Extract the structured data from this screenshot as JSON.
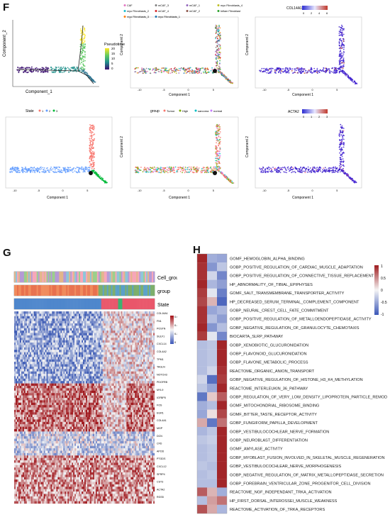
{
  "panel_letters": {
    "f": "F",
    "g": "G",
    "h": "H"
  },
  "panel_f": {
    "axis_component_1": "Component 1",
    "axis_component_2": "Component 2",
    "plot_a_xlabel": "Component_1",
    "plot_a_ylabel": "Component_2",
    "pseudotime_title": "Pseudotime",
    "pseudotime_ticks": [
      "20",
      "15",
      "10",
      "5",
      "0"
    ],
    "celltype_legend": [
      "CAF",
      "mCAF_3",
      "mCAF_1",
      "myo Fibroblasts_4",
      "myo Fibroblasts_2",
      "mCAF_4",
      "mCAF_2",
      "Inflam Fibroblast",
      "myo Fibroblasts_3",
      "myo Fibroblasts_1"
    ],
    "col14a1_title": "COL14A1",
    "col14a1_ticks": [
      "0",
      "2",
      "4",
      "6"
    ],
    "state_title": "State",
    "state_items": [
      "1",
      "2",
      "3"
    ],
    "group_title": "group",
    "group_items": [
      "Tumor",
      "High",
      "sarcoma",
      "normal"
    ],
    "acta2_title": "ACTA2",
    "acta2_ticks": [
      "0",
      "1",
      "2",
      "3"
    ],
    "x_ticks": [
      "-10",
      "-5",
      "0",
      "5"
    ],
    "node_label": "1"
  },
  "panel_g": {
    "annotation_rows": [
      "Cell_group",
      "group",
      "State"
    ],
    "colorbar_ticks": [
      "0.6",
      "0.4",
      "0.2",
      "0"
    ],
    "gene_labels": [
      "COL16A1",
      "FN1",
      "POSTN",
      "SULF1",
      "CXCL14",
      "COL4A2",
      "TPM1",
      "TAGLN",
      "NOTCH3",
      "PDGFRB",
      "MYL9",
      "IGFBP5",
      "FOS",
      "EGR1",
      "COL4A1",
      "MGP",
      "DCN",
      "CFD",
      "APOD",
      "PTGDS",
      "CXCL12",
      "SFRP4",
      "CST3",
      "ACTA2",
      "RGS5"
    ]
  },
  "panel_h": {
    "colorbar_ticks": [
      "1",
      "0.5",
      "0",
      "-0.5",
      "-1"
    ],
    "rows": [
      {
        "label": "GOMF_HEMOGLOBIN_ALPHA_BINDING",
        "values": [
          0.95,
          -0.45,
          -0.5
        ]
      },
      {
        "label": "GOBP_POSITIVE_REGULATION_OF_CARDIAC_MUSCLE_ADAPTATION",
        "values": [
          0.9,
          -0.6,
          -0.3
        ]
      },
      {
        "label": "GOBP_POSITIVE_REGULATION_OF_CONNECTIVE_TISSUE_REPLACEMENT",
        "values": [
          0.9,
          -0.2,
          -0.7
        ]
      },
      {
        "label": "HP_ABNORMALITY_OF_TIBIAL_EPIPHYSES",
        "values": [
          0.95,
          -0.4,
          -0.55
        ]
      },
      {
        "label": "GOMF_SALT_TRANSMEMBRANE_TRANSPORTER_ACTIVITY",
        "values": [
          0.85,
          -0.1,
          -0.75
        ]
      },
      {
        "label": "HP_DECREASED_SERUM_TERMINAL_COMPLEMENT_COMPONENT",
        "values": [
          0.8,
          0.3,
          -0.9
        ]
      },
      {
        "label": "GOBP_NEURAL_CREST_CELL_FATE_COMMITMENT",
        "values": [
          0.9,
          -0.5,
          -0.4
        ]
      },
      {
        "label": "GOBP_POSITIVE_REGULATION_OF_METALLOENDOPEPTIDASE_ACTIVITY",
        "values": [
          0.9,
          -0.35,
          -0.55
        ]
      },
      {
        "label": "GOBP_NEGATIVE_REGULATION_OF_GRANULOCYTE_CHEMOTAXIS",
        "values": [
          0.95,
          -0.6,
          -0.35
        ]
      },
      {
        "label": "BIOCARTA_SLRP_PATHWAY",
        "values": [
          0.85,
          -0.1,
          -0.7
        ]
      },
      {
        "label": "GOBP_XENOBIOTIC_GLUCURONIDATION",
        "values": [
          -0.35,
          -0.3,
          0.95
        ]
      },
      {
        "label": "GOBP_FLAVONOID_GLUCURONIDATION",
        "values": [
          -0.35,
          -0.3,
          0.95
        ]
      },
      {
        "label": "GOBP_FLAVONE_METABOLIC_PROCESS",
        "values": [
          -0.35,
          -0.3,
          0.95
        ]
      },
      {
        "label": "REACTOME_ORGANIC_ANION_TRANSPORT",
        "values": [
          -0.35,
          -0.2,
          0.9
        ]
      },
      {
        "label": "GOBP_NEGATIVE_REGULATION_OF_HISTONE_H3_K4_METHYLATION",
        "values": [
          -0.2,
          -0.85,
          0.85
        ]
      },
      {
        "label": "REACTOME_INTERLEUKIN_36_PATHWAY",
        "values": [
          -0.3,
          -0.5,
          0.95
        ]
      },
      {
        "label": "GOBP_REGULATION_OF_VERY_LOW_DENSITY_LIPOPROTEIN_PARTICLE_REMODELING",
        "values": [
          -0.8,
          0.2,
          0.7
        ]
      },
      {
        "label": "GOMF_MITOCHONDRIAL_RIBOSOME_BINDING",
        "values": [
          -0.45,
          -0.35,
          0.95
        ]
      },
      {
        "label": "GOMF_BITTER_TASTE_RECEPTOR_ACTIVITY",
        "values": [
          -0.5,
          0.1,
          0.8
        ]
      },
      {
        "label": "GOBP_FUNGIFORM_PAPILLA_DEVELOPMENT",
        "values": [
          0.35,
          -0.8,
          0.6
        ]
      },
      {
        "label": "GOBP_VESTIBULOCOCHLEAR_NERVE_FORMATION",
        "values": [
          -0.4,
          -0.3,
          0.95
        ]
      },
      {
        "label": "GOBP_NEUROBLAST_DIFFERENTIATION",
        "values": [
          -0.3,
          -0.25,
          0.95
        ]
      },
      {
        "label": "GOMF_AMYLASE_ACTIVITY",
        "values": [
          -0.35,
          -0.3,
          0.95
        ]
      },
      {
        "label": "GOBP_MYOBLAST_FUSION_INVOLVED_IN_SKELETAL_MUSCLE_REGENERATION",
        "values": [
          -0.35,
          -0.3,
          0.95
        ]
      },
      {
        "label": "GOBP_VESTIBULOCOCHLEAR_NERVE_MORPHOGENESIS",
        "values": [
          -0.3,
          -0.35,
          0.95
        ]
      },
      {
        "label": "GOBP_NEGATIVE_REGULATION_OF_MATRIX_METALLOPEPTIDASE_SECRETION",
        "values": [
          -0.35,
          -0.3,
          0.95
        ]
      },
      {
        "label": "GOBP_FOREBRAIN_VENTRICULAR_ZONE_PROGENITOR_CELL_DIVISION",
        "values": [
          -0.35,
          -0.35,
          0.95
        ]
      },
      {
        "label": "REACTOME_NGF_INDEPENDANT_TRKA_ACTIVATION",
        "values": [
          0.7,
          0.3,
          -0.45
        ]
      },
      {
        "label": "HP_FIRST_DORSAL_INTEROSSEI_MUSCLE_WEAKNESS",
        "values": [
          -0.35,
          0.4,
          0.6
        ]
      },
      {
        "label": "REACTOME_ACTIVATION_OF_TRKA_RECEPTORS",
        "values": [
          0.75,
          0.35,
          -0.4
        ]
      }
    ]
  },
  "colors": {
    "heat_high": "#9e1b1e",
    "heat_mid": "#f5f5f5",
    "heat_low": "#3b57b8",
    "trajectory": "#7a1fd6"
  }
}
